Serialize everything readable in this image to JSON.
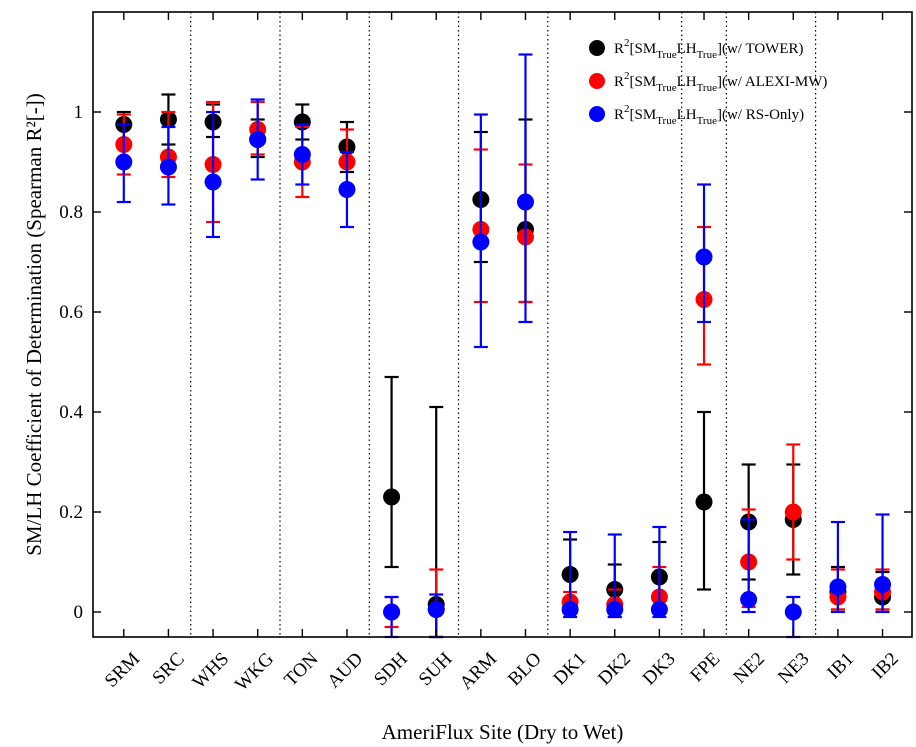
{
  "chart_data": {
    "type": "scatter",
    "xlabel": "AmeriFlux Site (Dry to Wet)",
    "ylabel": "SM/LH Coefficient of Determination (Spearman R²[-])",
    "ylim": [
      -0.05,
      1.2
    ],
    "yticks": [
      0,
      0.2,
      0.4,
      0.6,
      0.8,
      1
    ],
    "ytick_labels": [
      "0",
      "0.2",
      "0.4",
      "0.6",
      "0.8",
      "1"
    ],
    "categories": [
      "SRM",
      "SRC",
      "WHS",
      "WKG",
      "TON",
      "AUD",
      "SDH",
      "SUH",
      "ARM",
      "BLO",
      "DK1",
      "DK2",
      "DK3",
      "FPE",
      "NE2",
      "NE3",
      "IB1",
      "IB2"
    ],
    "group_separators_after": [
      2,
      4,
      6,
      8,
      10,
      13,
      14,
      16
    ],
    "grid": false,
    "legend_position": "top-right",
    "series": [
      {
        "name": "w/ TOWER",
        "label": {
          "base": "R",
          "sup": "2",
          "pre": "[SM",
          "sub1": "True",
          "mid": "LH",
          "sub2": "True",
          "post": "](w/ TOWER)"
        },
        "color": "#000000",
        "values": [
          0.975,
          0.985,
          0.98,
          0.945,
          0.98,
          0.93,
          0.23,
          0.015,
          0.825,
          0.765,
          0.075,
          0.045,
          0.07,
          0.22,
          0.18,
          0.185,
          0.04,
          0.03
        ],
        "lower": [
          0.905,
          0.935,
          0.95,
          0.91,
          0.945,
          0.88,
          0.09,
          -0.05,
          0.7,
          0.62,
          0.005,
          0.0,
          0.0,
          0.045,
          0.065,
          0.075,
          0.005,
          0.005
        ],
        "upper": [
          1.0,
          1.035,
          1.015,
          0.985,
          1.015,
          0.98,
          0.47,
          0.41,
          0.96,
          0.985,
          0.145,
          0.095,
          0.14,
          0.4,
          0.295,
          0.295,
          0.09,
          0.08
        ]
      },
      {
        "name": "w/ ALEXI-MW",
        "label": {
          "base": "R",
          "sup": "2",
          "pre": "[SM",
          "sub1": "True",
          "mid": "LH",
          "sub2": "True",
          "post": "](w/ ALEXI-MW)"
        },
        "color": "#ff0000",
        "values": [
          0.935,
          0.91,
          0.895,
          0.965,
          0.9,
          0.9,
          0.0,
          0.005,
          0.765,
          0.75,
          0.02,
          0.015,
          0.03,
          0.625,
          0.1,
          0.2,
          0.03,
          0.04
        ],
        "lower": [
          0.875,
          0.87,
          0.78,
          0.915,
          0.83,
          0.84,
          -0.03,
          -0.05,
          0.62,
          0.62,
          0.0,
          -0.01,
          0.0,
          0.495,
          0.01,
          0.105,
          0.005,
          0.005
        ],
        "upper": [
          0.995,
          1.0,
          1.02,
          1.02,
          0.97,
          0.965,
          0.03,
          0.085,
          0.925,
          0.895,
          0.04,
          0.045,
          0.09,
          0.77,
          0.205,
          0.335,
          0.085,
          0.085
        ]
      },
      {
        "name": "w/ RS-Only",
        "label": {
          "base": "R",
          "sup": "2",
          "pre": "[SM",
          "sub1": "True",
          "mid": "LH",
          "sub2": "True",
          "post": "](w/ RS-Only)"
        },
        "color": "#0000ff",
        "values": [
          0.9,
          0.89,
          0.86,
          0.945,
          0.915,
          0.845,
          0.0,
          0.005,
          0.74,
          0.82,
          0.005,
          0.005,
          0.005,
          0.71,
          0.025,
          0.0,
          0.05,
          0.055
        ],
        "lower": [
          0.82,
          0.815,
          0.75,
          0.865,
          0.855,
          0.77,
          -0.05,
          -0.05,
          0.53,
          0.58,
          -0.01,
          -0.01,
          -0.01,
          0.58,
          0.0,
          -0.05,
          0.0,
          0.0
        ],
        "upper": [
          0.975,
          0.97,
          1.0,
          1.025,
          0.975,
          0.92,
          0.03,
          0.035,
          0.995,
          1.115,
          0.16,
          0.155,
          0.17,
          0.855,
          0.185,
          0.03,
          0.18,
          0.195
        ]
      }
    ]
  }
}
